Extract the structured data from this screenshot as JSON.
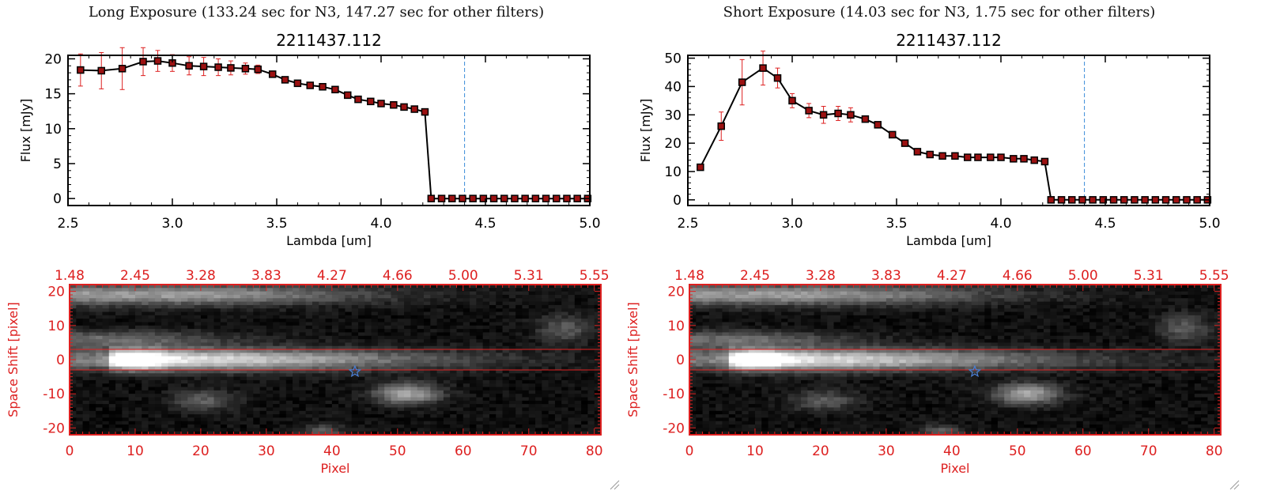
{
  "panels": {
    "left": {
      "heading": "Long Exposure (133.24 sec for N3, 147.27 sec for other filters)"
    },
    "right": {
      "heading": "Short Exposure (14.03 sec for N3, 1.75 sec for other filters)"
    }
  },
  "chart_data": [
    {
      "id": "spectrum-long",
      "type": "line",
      "title": "2211437.112",
      "xlabel": "Lambda [um]",
      "ylabel": "Flux [mJy]",
      "xlim": [
        2.5,
        5.0
      ],
      "ylim": [
        -1,
        20.5
      ],
      "x_ticks": [
        "2.5",
        "3.0",
        "3.5",
        "4.0",
        "4.5",
        "5.0"
      ],
      "y_ticks": [
        "0",
        "5",
        "10",
        "15",
        "20"
      ],
      "x_tick_values": [
        2.5,
        3.0,
        3.5,
        4.0,
        4.5,
        5.0
      ],
      "y_tick_values": [
        0,
        5,
        10,
        15,
        20
      ],
      "marker_vline": 4.4,
      "grid": false,
      "colors": {
        "line": "#000000",
        "marker": "#000000",
        "marker_fill": "#9b1111",
        "error": "#dd2020",
        "vline": "#3a8ad8",
        "baseline": "#dd2020"
      },
      "series": [
        {
          "x": [
            2.56,
            2.66,
            2.76,
            2.86,
            2.93,
            3.0,
            3.08,
            3.15,
            3.22,
            3.28,
            3.35,
            3.41,
            3.48,
            3.54,
            3.6,
            3.66,
            3.72,
            3.78,
            3.84,
            3.89,
            3.95,
            4.0,
            4.06,
            4.11,
            4.16,
            4.21,
            4.24,
            4.29,
            4.34,
            4.39,
            4.44,
            4.49,
            4.54,
            4.59,
            4.64,
            4.69,
            4.74,
            4.79,
            4.84,
            4.89,
            4.94,
            4.99
          ],
          "y": [
            18.4,
            18.3,
            18.6,
            19.6,
            19.7,
            19.4,
            19.0,
            18.9,
            18.8,
            18.7,
            18.6,
            18.5,
            17.8,
            17.0,
            16.5,
            16.2,
            16.0,
            15.6,
            14.8,
            14.2,
            13.9,
            13.6,
            13.4,
            13.1,
            12.8,
            12.4,
            0,
            0,
            0,
            0,
            0,
            0,
            0,
            0,
            0,
            0,
            0,
            0,
            0,
            0,
            0,
            0
          ],
          "yerr": [
            2.3,
            2.6,
            3.0,
            2.0,
            1.5,
            1.2,
            1.3,
            1.3,
            1.2,
            1.0,
            0.8,
            0.6,
            0.3,
            0.3,
            0.3,
            0.3,
            0.3,
            0.3,
            0.3,
            0.3,
            0.3,
            0.3,
            0.3,
            0.3,
            0.3,
            0.3,
            0,
            0,
            0,
            0,
            0,
            0,
            0,
            0,
            0,
            0,
            0,
            0,
            0,
            0,
            0,
            0
          ]
        }
      ]
    },
    {
      "id": "spectrum-short",
      "type": "line",
      "title": "2211437.112",
      "xlabel": "Lambda [um]",
      "ylabel": "Flux [mJy]",
      "xlim": [
        2.5,
        5.0
      ],
      "ylim": [
        -2,
        51
      ],
      "x_ticks": [
        "2.5",
        "3.0",
        "3.5",
        "4.0",
        "4.5",
        "5.0"
      ],
      "y_ticks": [
        "0",
        "10",
        "20",
        "30",
        "40",
        "50"
      ],
      "x_tick_values": [
        2.5,
        3.0,
        3.5,
        4.0,
        4.5,
        5.0
      ],
      "y_tick_values": [
        0,
        10,
        20,
        30,
        40,
        50
      ],
      "marker_vline": 4.4,
      "grid": false,
      "colors": {
        "line": "#000000",
        "marker": "#000000",
        "marker_fill": "#9b1111",
        "error": "#dd2020",
        "vline": "#3a8ad8",
        "baseline": "#dd2020"
      },
      "series": [
        {
          "x": [
            2.56,
            2.66,
            2.76,
            2.86,
            2.93,
            3.0,
            3.08,
            3.15,
            3.22,
            3.28,
            3.35,
            3.41,
            3.48,
            3.54,
            3.6,
            3.66,
            3.72,
            3.78,
            3.84,
            3.89,
            3.95,
            4.0,
            4.06,
            4.11,
            4.16,
            4.21,
            4.24,
            4.29,
            4.34,
            4.39,
            4.44,
            4.49,
            4.54,
            4.59,
            4.64,
            4.69,
            4.74,
            4.79,
            4.84,
            4.89,
            4.94,
            4.99
          ],
          "y": [
            11.5,
            26.0,
            41.5,
            46.5,
            43.0,
            35.0,
            31.5,
            30.0,
            30.5,
            30.0,
            28.5,
            26.5,
            23.0,
            20.0,
            17.0,
            16.0,
            15.5,
            15.5,
            15.0,
            15.0,
            15.0,
            15.0,
            14.5,
            14.5,
            14.0,
            13.5,
            0,
            0,
            0,
            0,
            0,
            0,
            0,
            0,
            0,
            0,
            0,
            0,
            0,
            0,
            0,
            0
          ],
          "yerr": [
            0.5,
            5.0,
            8.0,
            6.0,
            3.5,
            2.5,
            2.5,
            3.0,
            2.5,
            2.5,
            1.0,
            0.8,
            0.6,
            0.5,
            0.5,
            0.5,
            0.5,
            0.5,
            0.5,
            0.5,
            0.5,
            0.5,
            0.5,
            0.5,
            0.5,
            0.5,
            0,
            0,
            0,
            0,
            0,
            0,
            0,
            0,
            0,
            0,
            0,
            0,
            0,
            0,
            0,
            0
          ]
        }
      ]
    },
    {
      "id": "image-long",
      "type": "heatmap",
      "xlabel": "Pixel",
      "ylabel": "Space Shift [pixel]",
      "xlim": [
        0,
        81
      ],
      "ylim": [
        -22,
        22
      ],
      "x_ticks": [
        "0",
        "10",
        "20",
        "30",
        "40",
        "50",
        "60",
        "70",
        "80"
      ],
      "y_ticks": [
        "-20",
        "-10",
        "0",
        "10",
        "20"
      ],
      "x_tick_values": [
        0,
        10,
        20,
        30,
        40,
        50,
        60,
        70,
        80
      ],
      "y_tick_values": [
        -20,
        -10,
        0,
        10,
        20
      ],
      "top_ticks": [
        "1.48",
        "2.45",
        "3.28",
        "3.83",
        "4.27",
        "4.66",
        "5.00",
        "5.31",
        "5.55"
      ],
      "aperture_lines": [
        3,
        -3
      ],
      "star_marker": {
        "x": 43.5,
        "y": -3.5
      },
      "colors": {
        "axes": "#dd2020",
        "aperture": "#dd2020",
        "star": "#4a7fd6"
      }
    },
    {
      "id": "image-short",
      "type": "heatmap",
      "xlabel": "Pixel",
      "ylabel": "Space Shift [pixel]",
      "xlim": [
        0,
        81
      ],
      "ylim": [
        -22,
        22
      ],
      "x_ticks": [
        "0",
        "10",
        "20",
        "30",
        "40",
        "50",
        "60",
        "70",
        "80"
      ],
      "y_ticks": [
        "-20",
        "-10",
        "0",
        "10",
        "20"
      ],
      "x_tick_values": [
        0,
        10,
        20,
        30,
        40,
        50,
        60,
        70,
        80
      ],
      "y_tick_values": [
        -20,
        -10,
        0,
        10,
        20
      ],
      "top_ticks": [
        "1.48",
        "2.45",
        "3.28",
        "3.83",
        "4.27",
        "4.66",
        "5.00",
        "5.31",
        "5.55"
      ],
      "aperture_lines": [
        3,
        -3
      ],
      "star_marker": {
        "x": 43.5,
        "y": -3.5
      },
      "colors": {
        "axes": "#dd2020",
        "aperture": "#dd2020",
        "star": "#4a7fd6"
      }
    }
  ]
}
